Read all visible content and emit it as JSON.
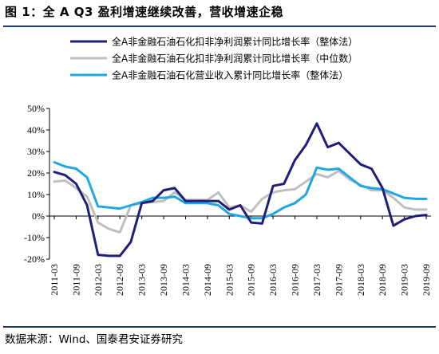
{
  "header": {
    "title": "图 1：全 A Q3 盈利增速继续改善，营收增速企稳"
  },
  "footer": {
    "source": "数据来源：Wind、国泰君安证券研究"
  },
  "chart_data": {
    "type": "line",
    "x": [
      "2011-03",
      "2011-06",
      "2011-09",
      "2011-12",
      "2012-03",
      "2012-06",
      "2012-09",
      "2012-12",
      "2013-03",
      "2013-06",
      "2013-09",
      "2013-12",
      "2014-03",
      "2014-06",
      "2014-09",
      "2014-12",
      "2015-03",
      "2015-06",
      "2015-09",
      "2015-12",
      "2016-03",
      "2016-06",
      "2016-09",
      "2016-12",
      "2017-03",
      "2017-06",
      "2017-09",
      "2017-12",
      "2018-03",
      "2018-06",
      "2018-09",
      "2018-12",
      "2019-03",
      "2019-06",
      "2019-09"
    ],
    "xticks": [
      "2011-03",
      "2011-09",
      "2012-03",
      "2012-09",
      "2013-03",
      "2013-09",
      "2014-03",
      "2014-09",
      "2015-03",
      "2015-09",
      "2016-03",
      "2016-09",
      "2017-03",
      "2017-09",
      "2018-03",
      "2018-09",
      "2019-03",
      "2019-09"
    ],
    "yticks": [
      "50%",
      "40%",
      "30%",
      "20%",
      "10%",
      "0%",
      "-10%",
      "-20%"
    ],
    "ylim": [
      -20,
      50
    ],
    "grid": false,
    "legend_position": "top",
    "series": [
      {
        "name": "全A非金融石油石化扣非净利润累计同比增长率（整体法）",
        "color": "#1f1f7a",
        "values": [
          20.5,
          19,
          15,
          5,
          -18,
          -18.5,
          -18.5,
          -12,
          6,
          7,
          12,
          13,
          7,
          7,
          7,
          7,
          3,
          5,
          -3,
          -3.5,
          14,
          15,
          26,
          33,
          43,
          32,
          34,
          29,
          24,
          22,
          13,
          -4.5,
          -1.5,
          0,
          0.5
        ]
      },
      {
        "name": "全A非金融石油石化扣非净利润累计同比增长率（中位数）",
        "color": "#bfbfbf",
        "values": [
          16,
          16.5,
          13,
          9,
          -3,
          -6,
          -7.5,
          5,
          6,
          6.5,
          7,
          11,
          7.5,
          7.5,
          7.5,
          11,
          4,
          5,
          2,
          8,
          11,
          12,
          12.5,
          16,
          19.5,
          18,
          21,
          17,
          14.5,
          12,
          12,
          8.5,
          4,
          3,
          3
        ]
      },
      {
        "name": "全A非金融石油石化营业收入累计同比增长率（整体法）",
        "color": "#1fa8e0",
        "values": [
          25,
          23,
          22,
          18,
          4.5,
          4,
          3.5,
          5,
          6.5,
          8.5,
          8.5,
          9,
          6,
          6,
          6,
          5,
          1,
          0,
          -1,
          -1,
          1,
          4,
          6,
          10,
          22.5,
          21.5,
          22,
          18,
          14,
          13,
          12.5,
          10.5,
          8.5,
          8,
          8
        ]
      }
    ]
  }
}
